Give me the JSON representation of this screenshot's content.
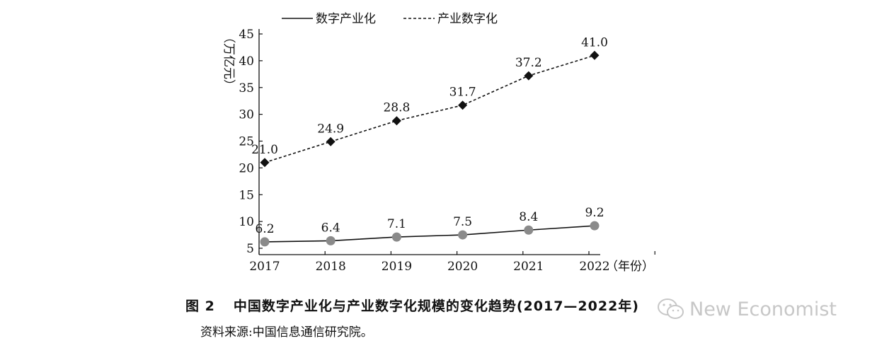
{
  "colors": {
    "series1_line": "#111111",
    "series1_marker": "#8a8a8a",
    "series2_line": "#111111",
    "series2_marker": "#111111",
    "watermark": "#9a9a9a"
  },
  "chart_data": {
    "type": "line",
    "categories": [
      "2017",
      "2018",
      "2019",
      "2020",
      "2021",
      "2022"
    ],
    "x_unit_label": "（年份）",
    "y_unit_label": "（万亿元）",
    "ylim": [
      5,
      45
    ],
    "y_ticks": [
      "5",
      "10",
      "15",
      "20",
      "25",
      "30",
      "35",
      "40",
      "45"
    ],
    "grid": false,
    "legend_position": "top",
    "series": [
      {
        "name": "数字产业化",
        "style": "solid",
        "marker": "circle",
        "values": [
          6.2,
          6.4,
          7.1,
          7.5,
          8.4,
          9.2
        ],
        "labels": [
          "6.2",
          "6.4",
          "7.1",
          "7.5",
          "8.4",
          "9.2"
        ]
      },
      {
        "name": "产业数字化",
        "style": "dashed",
        "marker": "diamond",
        "values": [
          21.0,
          24.9,
          28.8,
          31.7,
          37.2,
          41.0
        ],
        "labels": [
          "21.0",
          "24.9",
          "28.8",
          "31.7",
          "37.2",
          "41.0"
        ]
      }
    ]
  },
  "caption": {
    "figure_number": "图 2",
    "title": "中国数字产业化与产业数字化规模的变化趋势(2017—2022年)"
  },
  "source": "资料来源:中国信息通信研究院。",
  "watermark": {
    "icon": "wechat-icon",
    "text": "New Economist"
  }
}
